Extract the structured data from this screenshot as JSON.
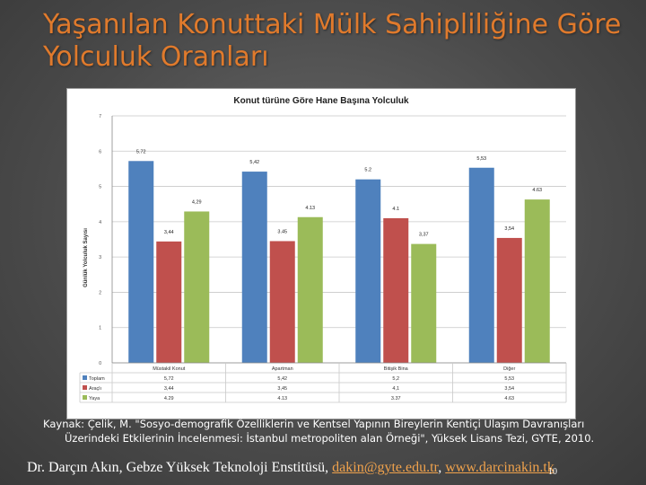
{
  "slide": {
    "title": "Yaşanılan Konuttaki Mülk Sahipliliğine Göre Yolculuk Oranları",
    "source_line1": "Kaynak: Çelik, M. \"Sosyo-demografik Özelliklerin ve Kentsel Yapının Bireylerin Kentiçi Ulaşım Davranışları",
    "source_line2": "Üzerindeki Etkilerinin İncelenmesi: İstanbul metropoliten alan Örneği\", Yüksek Lisans Tezi, GYTE, 2010.",
    "footer_text": "Dr. Darçın Akın, Gebze Yüksek Teknoloji Enstitüsü, ",
    "footer_email": "dakin@gyte.edu.tr",
    "footer_sep": ", ",
    "footer_web": "www.darcinakin.tk",
    "page_number": "10"
  },
  "chart_data": {
    "type": "bar",
    "title": "Konut türüne Göre Hane Başına Yolculuk",
    "ylabel": "Günlük Yolculuk Sayısı",
    "xlabel": "",
    "ylim": [
      0,
      7
    ],
    "yticks": [
      0,
      1,
      2,
      3,
      4,
      5,
      6,
      7
    ],
    "categories": [
      "Müstakil Konut",
      "Apartman",
      "Bitişik Bina",
      "Diğer"
    ],
    "series": [
      {
        "name": "Toplam",
        "color": "#4f81bd",
        "values": [
          5.72,
          5.42,
          5.2,
          5.53
        ],
        "labels": [
          "5.72",
          "5,42",
          "5.2",
          "5,53"
        ]
      },
      {
        "name": "Araçlı",
        "color": "#c0504d",
        "values": [
          3.44,
          3.45,
          4.1,
          3.54
        ],
        "labels": [
          "3,44",
          "3.45",
          "4.1",
          "3,54"
        ]
      },
      {
        "name": "Yaya",
        "color": "#9bbb59",
        "values": [
          4.29,
          4.13,
          3.37,
          4.63
        ],
        "labels": [
          "4,29",
          "4.13",
          "3,37",
          "4.63"
        ]
      }
    ],
    "table_rows": [
      [
        "5,72",
        "5,42",
        "5,2",
        "5,53"
      ],
      [
        "3,44",
        "3,45",
        "4,1",
        "3,54"
      ],
      [
        "4.29",
        "4.13",
        "3.37",
        "4.63"
      ]
    ],
    "grid": true,
    "legend": "data-table"
  }
}
